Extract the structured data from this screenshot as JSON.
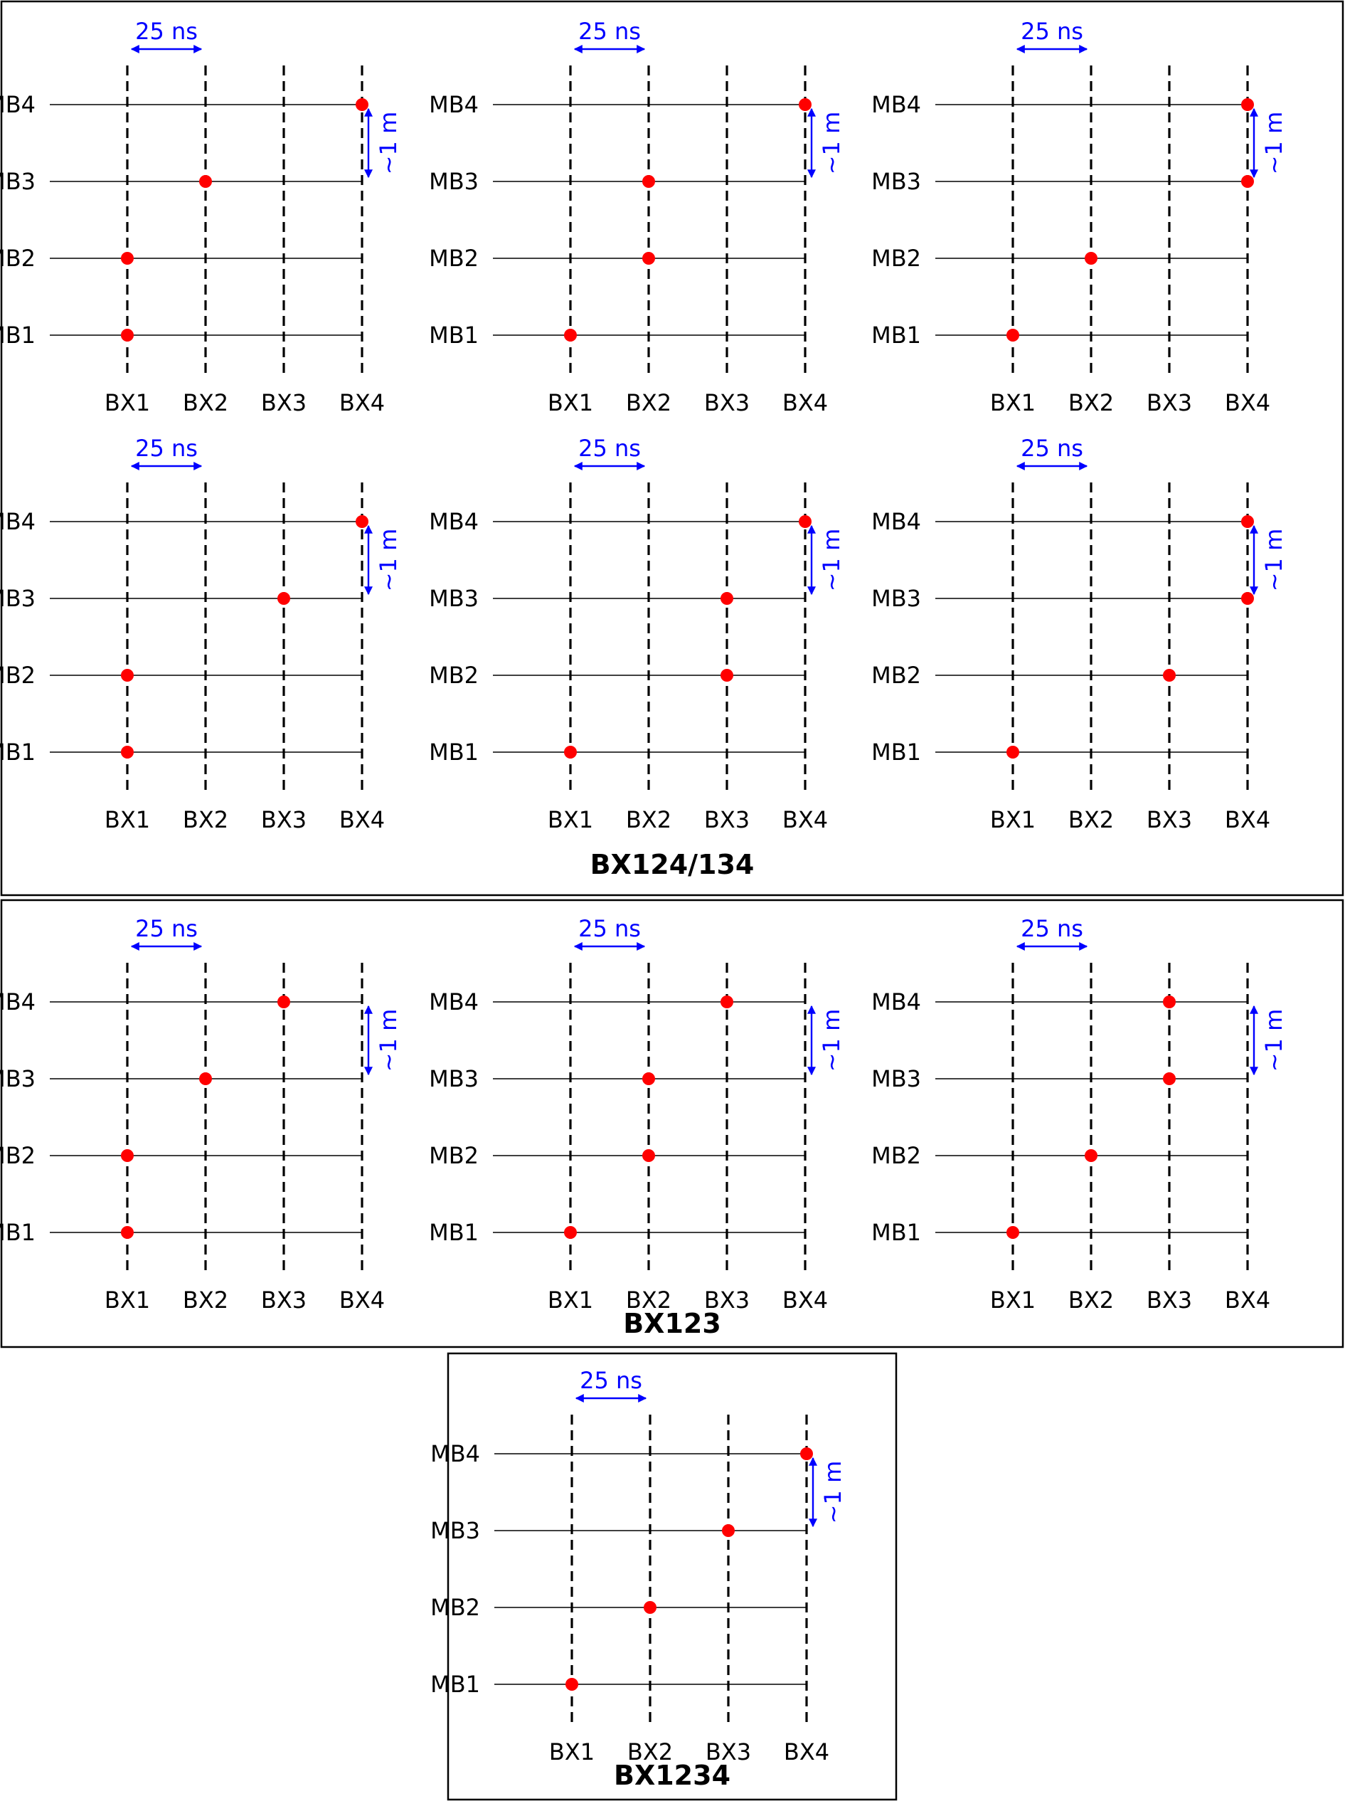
{
  "stations": [
    "MB1",
    "MB2",
    "MB3",
    "MB4"
  ],
  "bunch_crossings": [
    "BX1",
    "BX2",
    "BX3",
    "BX4"
  ],
  "annotations": {
    "time": "25 ns",
    "distance": "~1 m"
  },
  "colors": {
    "hit": "#ff0000",
    "annotation": "#0000ff",
    "lines": "#000000"
  },
  "groups": [
    {
      "title": "BX124/134",
      "panels": [
        {
          "hits": {
            "MB1": "BX1",
            "MB2": "BX1",
            "MB3": "BX2",
            "MB4": "BX4"
          }
        },
        {
          "hits": {
            "MB1": "BX1",
            "MB2": "BX2",
            "MB3": "BX2",
            "MB4": "BX4"
          }
        },
        {
          "hits": {
            "MB1": "BX1",
            "MB2": "BX2",
            "MB3": "BX4",
            "MB4": "BX4"
          }
        },
        {
          "hits": {
            "MB1": "BX1",
            "MB2": "BX1",
            "MB3": "BX3",
            "MB4": "BX4"
          }
        },
        {
          "hits": {
            "MB1": "BX1",
            "MB2": "BX3",
            "MB3": "BX3",
            "MB4": "BX4"
          }
        },
        {
          "hits": {
            "MB1": "BX1",
            "MB2": "BX3",
            "MB3": "BX4",
            "MB4": "BX4"
          }
        }
      ]
    },
    {
      "title": "BX123",
      "panels": [
        {
          "hits": {
            "MB1": "BX1",
            "MB2": "BX1",
            "MB3": "BX2",
            "MB4": "BX3"
          }
        },
        {
          "hits": {
            "MB1": "BX1",
            "MB2": "BX2",
            "MB3": "BX2",
            "MB4": "BX3"
          }
        },
        {
          "hits": {
            "MB1": "BX1",
            "MB2": "BX2",
            "MB3": "BX3",
            "MB4": "BX3"
          }
        }
      ]
    },
    {
      "title": "BX1234",
      "panels": [
        {
          "hits": {
            "MB1": "BX1",
            "MB2": "BX2",
            "MB3": "BX3",
            "MB4": "BX4"
          }
        }
      ]
    }
  ]
}
